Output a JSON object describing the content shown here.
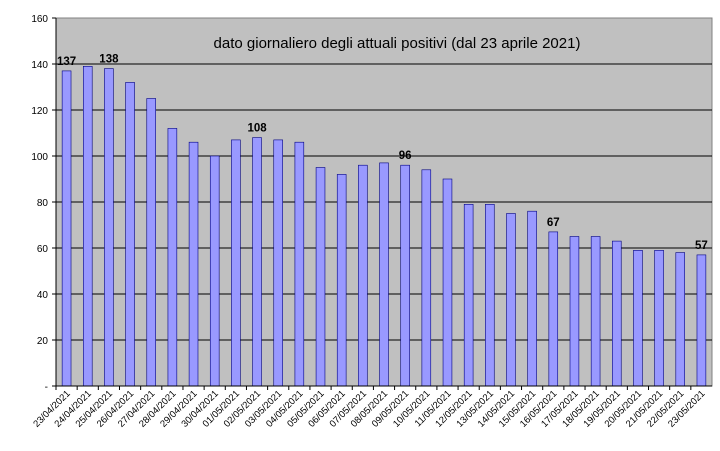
{
  "chart_data": {
    "type": "bar",
    "title": "dato giornaliero degli attuali positivi (dal 23 aprile 2021)",
    "xlabel": "",
    "ylabel": "",
    "ylim": [
      0,
      160
    ],
    "yticks": [
      0,
      20,
      40,
      60,
      80,
      100,
      120,
      140,
      160
    ],
    "ytick_labels": [
      "-",
      "20",
      "40",
      "60",
      "80",
      "100",
      "120",
      "140",
      "160"
    ],
    "grid": true,
    "legend": "none",
    "categories": [
      "23/04/2021",
      "24/04/2021",
      "25/04/2021",
      "26/04/2021",
      "27/04/2021",
      "28/04/2021",
      "29/04/2021",
      "30/04/2021",
      "01/05/2021",
      "02/05/2021",
      "03/05/2021",
      "04/05/2021",
      "05/05/2021",
      "06/05/2021",
      "07/05/2021",
      "08/05/2021",
      "09/05/2021",
      "10/05/2021",
      "11/05/2021",
      "12/05/2021",
      "13/05/2021",
      "14/05/2021",
      "15/05/2021",
      "16/05/2021",
      "17/05/2021",
      "18/05/2021",
      "19/05/2021",
      "20/05/2021",
      "21/05/2021",
      "22/05/2021",
      "23/05/2021"
    ],
    "values": [
      137,
      139,
      138,
      132,
      125,
      112,
      106,
      100,
      107,
      108,
      107,
      106,
      95,
      92,
      96,
      97,
      96,
      94,
      90,
      79,
      79,
      75,
      76,
      67,
      65,
      65,
      63,
      59,
      59,
      58,
      57
    ],
    "data_labels": [
      {
        "index": 0,
        "text": "137"
      },
      {
        "index": 2,
        "text": "138"
      },
      {
        "index": 9,
        "text": "108"
      },
      {
        "index": 16,
        "text": "96"
      },
      {
        "index": 23,
        "text": "67"
      },
      {
        "index": 30,
        "text": "57"
      }
    ],
    "colors": {
      "plot_bg": "#c0c0c0",
      "bar_fill": "#9999ff",
      "bar_stroke": "#000080",
      "grid": "#000000",
      "text": "#000000"
    }
  }
}
